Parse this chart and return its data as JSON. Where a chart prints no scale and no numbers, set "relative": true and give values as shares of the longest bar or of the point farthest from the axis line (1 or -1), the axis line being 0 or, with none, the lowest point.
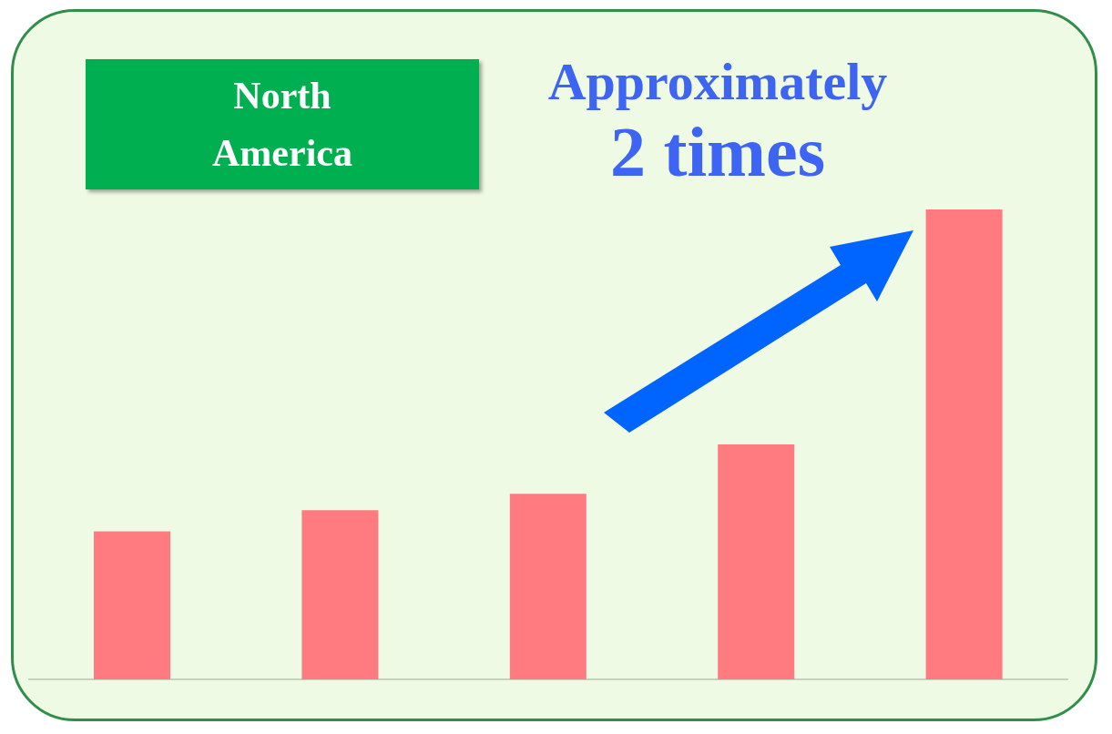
{
  "chart_data": {
    "type": "bar",
    "title": "North America",
    "annotations": [
      "Approximately\n2 times"
    ],
    "relative": true,
    "categories": [
      null,
      null,
      null,
      null,
      null
    ],
    "values": [
      0.315,
      0.36,
      0.395,
      0.5,
      1
    ],
    "color": "#ff7b80"
  }
}
